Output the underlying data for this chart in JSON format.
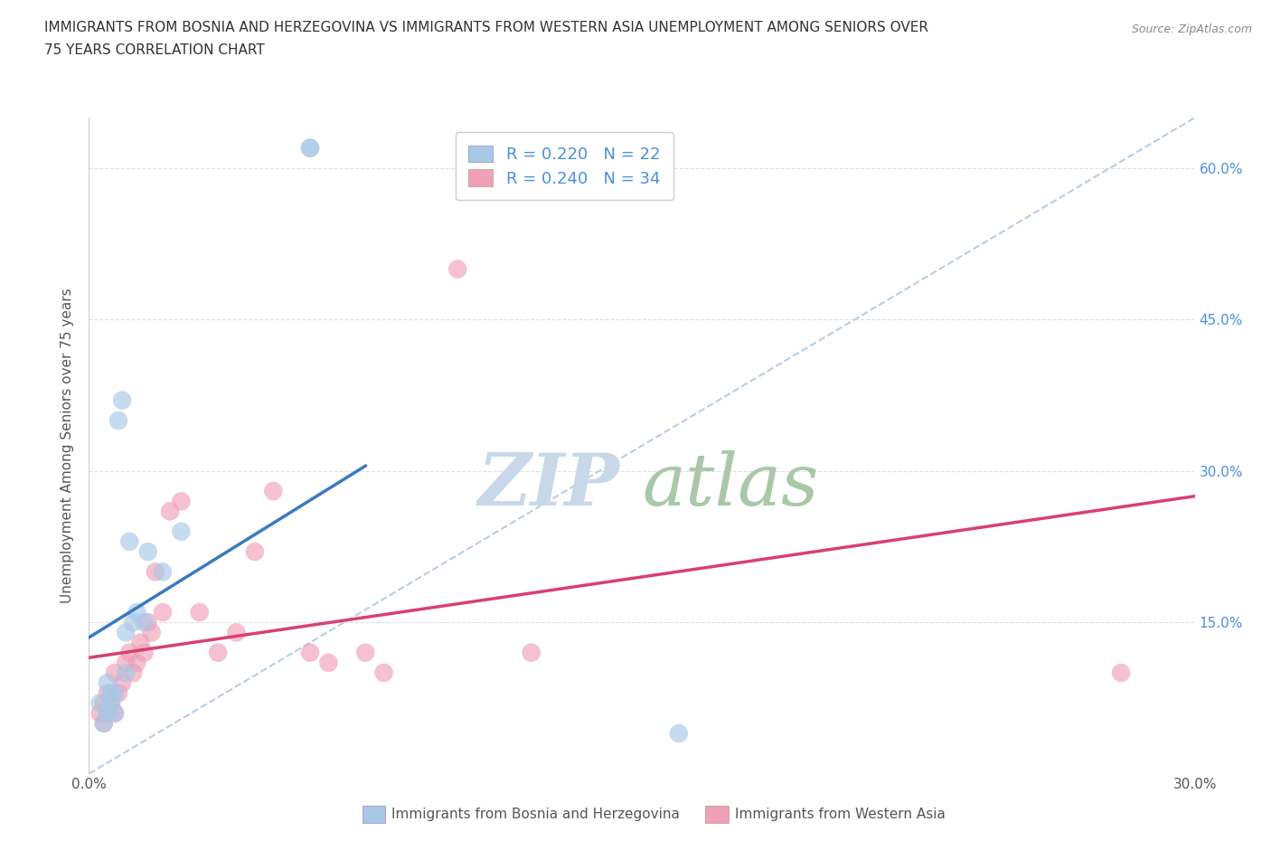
{
  "title_line1": "IMMIGRANTS FROM BOSNIA AND HERZEGOVINA VS IMMIGRANTS FROM WESTERN ASIA UNEMPLOYMENT AMONG SENIORS OVER",
  "title_line2": "75 YEARS CORRELATION CHART",
  "source": "Source: ZipAtlas.com",
  "ylabel": "Unemployment Among Seniors over 75 years",
  "x_bottom_label": "Immigrants from Bosnia and Herzegovina",
  "x_bottom_label2": "Immigrants from Western Asia",
  "xlim": [
    0.0,
    0.3
  ],
  "ylim": [
    0.0,
    0.65
  ],
  "blue_R": 0.22,
  "blue_N": 22,
  "pink_R": 0.24,
  "pink_N": 34,
  "blue_color": "#a8c8e8",
  "pink_color": "#f0a0b8",
  "blue_line_color": "#3a7abf",
  "pink_line_color": "#d94070",
  "diagonal_color": "#b0c8e0",
  "watermark_zip_color": "#c8d8e8",
  "watermark_atlas_color": "#a8c8a8",
  "blue_scatter_x": [
    0.003,
    0.004,
    0.005,
    0.005,
    0.006,
    0.006,
    0.007,
    0.007,
    0.008,
    0.009,
    0.01,
    0.01,
    0.011,
    0.012,
    0.013,
    0.015,
    0.016,
    0.02,
    0.025,
    0.06,
    0.06,
    0.16
  ],
  "blue_scatter_y": [
    0.07,
    0.05,
    0.06,
    0.09,
    0.07,
    0.08,
    0.06,
    0.08,
    0.35,
    0.37,
    0.1,
    0.14,
    0.23,
    0.15,
    0.16,
    0.15,
    0.22,
    0.2,
    0.24,
    0.62,
    0.62,
    0.04
  ],
  "pink_scatter_x": [
    0.003,
    0.004,
    0.004,
    0.005,
    0.005,
    0.006,
    0.007,
    0.007,
    0.008,
    0.009,
    0.01,
    0.011,
    0.012,
    0.013,
    0.014,
    0.015,
    0.016,
    0.017,
    0.018,
    0.02,
    0.022,
    0.025,
    0.03,
    0.035,
    0.04,
    0.045,
    0.05,
    0.06,
    0.065,
    0.075,
    0.08,
    0.1,
    0.12,
    0.28
  ],
  "pink_scatter_y": [
    0.06,
    0.05,
    0.07,
    0.06,
    0.08,
    0.07,
    0.06,
    0.1,
    0.08,
    0.09,
    0.11,
    0.12,
    0.1,
    0.11,
    0.13,
    0.12,
    0.15,
    0.14,
    0.2,
    0.16,
    0.26,
    0.27,
    0.16,
    0.12,
    0.14,
    0.22,
    0.28,
    0.12,
    0.11,
    0.12,
    0.1,
    0.5,
    0.12,
    0.1
  ],
  "blue_line_x0": 0.0,
  "blue_line_x1": 0.075,
  "blue_line_y0": 0.135,
  "blue_line_y1": 0.305,
  "pink_line_x0": 0.0,
  "pink_line_x1": 0.3,
  "pink_line_y0": 0.115,
  "pink_line_y1": 0.275,
  "grid_color": "#e0e0e0"
}
